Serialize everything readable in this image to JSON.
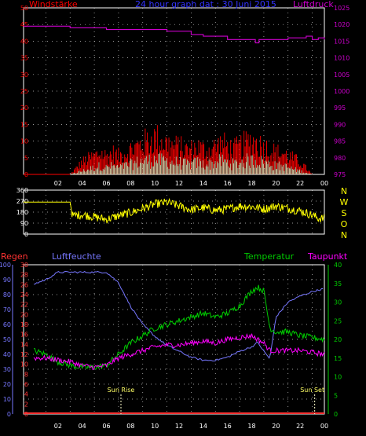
{
  "header": {
    "left": "Windstärke",
    "center": "24 hour graph dat : 30 Juni 2015",
    "right": "Luftdruck"
  },
  "colors": {
    "wind_gust": "#ff0000",
    "wind_avg": "#ccffcc",
    "pressure": "#cc00cc",
    "direction": "#ffff00",
    "regen": "#ff3333",
    "luftfeuchte": "#7777ff",
    "temperatur": "#00cc00",
    "taupunkt": "#ff00ff",
    "axis_text_left": "#ff0000",
    "axis_text_right_top": "#cc00cc",
    "axis_text_regen": "#ff3333",
    "axis_text_hum": "#7777ff",
    "axis_text_temp": "#00cc00",
    "grid": "#ffffff",
    "sun_marker": "#ffffcc"
  },
  "x_ticks": [
    "02",
    "04",
    "06",
    "08",
    "10",
    "12",
    "14",
    "16",
    "18",
    "20",
    "22",
    "00"
  ],
  "panels": {
    "top": {
      "left_ticks": [
        "0",
        "5",
        "10",
        "15",
        "20",
        "25",
        "30",
        "35",
        "40",
        "45",
        "50"
      ],
      "right_ticks": [
        "975",
        "980",
        "985",
        "990",
        "995",
        "1000",
        "1005",
        "1010",
        "1015",
        "1020",
        "1025"
      ]
    },
    "mid": {
      "left_ticks": [
        "0",
        "90",
        "180",
        "270",
        "360"
      ],
      "right_labels": [
        "N",
        "W",
        "S",
        "O",
        "N"
      ]
    },
    "bottom": {
      "labels": {
        "regen": "Regen",
        "luftfeuchte": "Luftfeuchte",
        "temperatur": "Temperatur",
        "taupunkt": "Taupunkt"
      },
      "hum_ticks": [
        "0",
        "10",
        "20",
        "30",
        "40",
        "50",
        "60",
        "70",
        "80",
        "90",
        "100"
      ],
      "rain_ticks": [
        "0",
        "2",
        "4",
        "6",
        "8",
        "10",
        "12",
        "14",
        "16",
        "18",
        "20",
        "22",
        "24",
        "26",
        "28",
        "30"
      ],
      "temp_ticks": [
        "0",
        "5",
        "10",
        "15",
        "20",
        "25",
        "30",
        "35",
        "40"
      ],
      "sunrise": "Sun Rise",
      "sunset": "Sun Set"
    }
  },
  "chart_data": [
    {
      "type": "bar",
      "title": "24 hour graph dat : 30 Juni 2015",
      "ylabel": "Windstärke",
      "y2label": "Luftdruck",
      "ylim": [
        0,
        50
      ],
      "y2lim": [
        975,
        1025
      ],
      "x_hours": [
        0,
        24
      ],
      "series": [
        {
          "name": "Windstärke (Böen)",
          "x": [
            0,
            3,
            3.5,
            4,
            4.5,
            5,
            5.5,
            6,
            6.5,
            7,
            7.5,
            8,
            8.5,
            9,
            9.5,
            10,
            10.5,
            11,
            11.5,
            12,
            12.5,
            13,
            13.5,
            14,
            14.5,
            15,
            15.5,
            16,
            16.5,
            17,
            17.5,
            18,
            18.5,
            19,
            19.5,
            20,
            20.5,
            21,
            21.5,
            22,
            22.5,
            23
          ],
          "values": [
            0,
            0,
            2,
            4,
            5,
            6,
            7,
            6,
            7,
            6,
            7,
            8,
            9,
            10,
            11,
            12,
            11,
            10,
            9,
            9,
            8,
            8,
            9,
            8,
            8,
            9,
            10,
            9,
            8,
            9,
            10,
            11,
            10,
            9,
            8,
            7,
            7,
            6,
            5,
            4,
            2,
            0
          ]
        },
        {
          "name": "Windstärke (Mittel)",
          "x": [
            0,
            3,
            3.5,
            4,
            4.5,
            5,
            5.5,
            6,
            6.5,
            7,
            7.5,
            8,
            8.5,
            9,
            9.5,
            10,
            10.5,
            11,
            11.5,
            12,
            12.5,
            13,
            13.5,
            14,
            14.5,
            15,
            15.5,
            16,
            16.5,
            17,
            17.5,
            18,
            18.5,
            19,
            19.5,
            20,
            20.5,
            21,
            21.5,
            22,
            22.5,
            23
          ],
          "values": [
            0,
            0,
            0.5,
            1,
            1.5,
            2,
            2.5,
            2,
            2.5,
            2,
            2.5,
            3,
            3.5,
            4,
            4,
            4.5,
            4,
            4,
            3.5,
            3.5,
            3,
            3,
            3.5,
            3,
            3,
            3.5,
            4,
            3.5,
            3,
            3.5,
            4,
            4,
            4,
            3.5,
            3,
            2.5,
            2.5,
            2,
            1.5,
            1,
            0.5,
            0
          ]
        },
        {
          "name": "Luftdruck",
          "x": [
            0,
            3,
            6,
            8,
            10,
            11,
            12,
            13,
            14,
            15,
            16,
            17,
            18,
            18.3,
            18.6,
            19,
            20,
            21,
            22,
            22.5,
            23,
            23.5,
            24
          ],
          "values": [
            1019.5,
            1019,
            1018.5,
            1018.5,
            1018.5,
            1018,
            1018,
            1017,
            1016.5,
            1016.5,
            1015.5,
            1015.5,
            1015.5,
            1014.5,
            1015.5,
            1015.5,
            1015.5,
            1016,
            1016,
            1016.5,
            1015.5,
            1016,
            1015.5
          ]
        }
      ]
    },
    {
      "type": "line",
      "ylabel": "Windrichtung",
      "ylim": [
        0,
        360
      ],
      "x_hours": [
        0,
        24
      ],
      "series": [
        {
          "name": "Windrichtung",
          "x": [
            0,
            2,
            3,
            3.2,
            4,
            5,
            6,
            7,
            8,
            9,
            10,
            11,
            12,
            13,
            14,
            15,
            16,
            17,
            18,
            19,
            20,
            21,
            22,
            23,
            23.5,
            24
          ],
          "values": [
            262,
            262,
            262,
            150,
            160,
            140,
            120,
            150,
            175,
            210,
            245,
            260,
            230,
            200,
            215,
            195,
            205,
            230,
            225,
            205,
            230,
            210,
            190,
            155,
            130,
            128
          ]
        }
      ]
    },
    {
      "type": "line",
      "x_hours": [
        0,
        24
      ],
      "ylim_humidity": [
        0,
        100
      ],
      "ylim_rain": [
        0,
        30
      ],
      "ylim_temp": [
        0,
        40
      ],
      "series": [
        {
          "name": "Regen",
          "x": [
            0,
            24
          ],
          "values": [
            0,
            0
          ]
        },
        {
          "name": "Luftfeuchte",
          "x": [
            0,
            1,
            2,
            3,
            4,
            5,
            6,
            7,
            8,
            9,
            10,
            11,
            12,
            13,
            14,
            15,
            16,
            17,
            18,
            18.5,
            19,
            19.5,
            20,
            21,
            22,
            23,
            24
          ],
          "values": [
            87,
            90,
            95,
            95,
            95,
            95,
            95,
            88,
            72,
            60,
            52,
            46,
            42,
            38,
            36,
            36,
            38,
            42,
            45,
            48,
            42,
            37,
            65,
            75,
            79,
            82,
            84
          ]
        },
        {
          "name": "Temperatur",
          "x": [
            0,
            1,
            2,
            3,
            4,
            5,
            6,
            7,
            8,
            9,
            10,
            11,
            12,
            13,
            14,
            15,
            16,
            17,
            17.5,
            18,
            18.5,
            19,
            19.5,
            20,
            21,
            22,
            23,
            24
          ],
          "values": [
            17,
            16,
            14,
            13,
            12.5,
            12.5,
            13,
            16,
            19,
            21,
            23,
            24,
            25,
            26,
            27,
            26,
            27,
            29,
            31,
            33,
            34,
            33,
            23,
            22,
            22,
            21,
            20.5,
            20
          ]
        },
        {
          "name": "Taupunkt",
          "x": [
            0,
            1,
            2,
            3,
            4,
            5,
            6,
            7,
            8,
            9,
            10,
            11,
            12,
            13,
            14,
            15,
            16,
            17,
            18,
            18.5,
            19,
            19.5,
            20,
            21,
            22,
            23,
            24
          ],
          "values": [
            15,
            15,
            14.5,
            14,
            13,
            12.5,
            13,
            15,
            16,
            17,
            18,
            18.5,
            18.5,
            19,
            19.5,
            19,
            20,
            20.5,
            21,
            20,
            19,
            17,
            17,
            17,
            17,
            16.5,
            16
          ]
        }
      ],
      "annotations": [
        {
          "label": "Sun Rise",
          "hour": 7.2
        },
        {
          "label": "Sun Set",
          "hour": 23.2
        }
      ]
    }
  ]
}
